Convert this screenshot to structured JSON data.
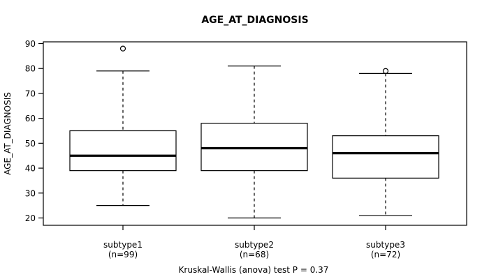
{
  "title": "AGE_AT_DIAGNOSIS",
  "ylabel": "AGE_AT_DIAGNOSIS",
  "footer": "Kruskal-Wallis (anova) test P = 0.37",
  "chart_data": {
    "type": "boxplot",
    "title": "AGE_AT_DIAGNOSIS",
    "xlabel": "",
    "ylabel": "AGE_AT_DIAGNOSIS",
    "caption": "Kruskal-Wallis (anova) test P = 0.37",
    "categories": [
      "subtype1",
      "subtype2",
      "subtype3"
    ],
    "category_sublabels": [
      "(n=99)",
      "(n=68)",
      "(n=72)"
    ],
    "yticks": [
      20,
      30,
      40,
      50,
      60,
      70,
      80,
      90
    ],
    "ylim": [
      17,
      91
    ],
    "grid": false,
    "legend": "none",
    "series": [
      {
        "name": "subtype1",
        "n": 99,
        "whisker_low": 25,
        "q1": 39,
        "median": 45,
        "q3": 55,
        "whisker_high": 79,
        "outliers": [
          88
        ]
      },
      {
        "name": "subtype2",
        "n": 68,
        "whisker_low": 20,
        "q1": 39,
        "median": 48,
        "q3": 58,
        "whisker_high": 81,
        "outliers": []
      },
      {
        "name": "subtype3",
        "n": 72,
        "whisker_low": 21,
        "q1": 36,
        "median": 46,
        "q3": 53,
        "whisker_high": 78,
        "outliers": [
          79
        ]
      }
    ],
    "colors": {
      "line": "#000000",
      "box_fill": "#ffffff",
      "background": "#ffffff"
    }
  }
}
